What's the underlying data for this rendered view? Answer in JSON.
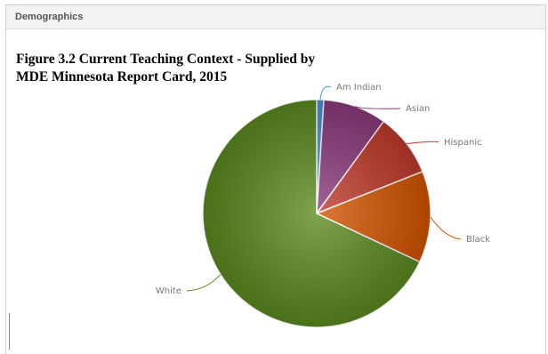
{
  "panel": {
    "title": "Demographics"
  },
  "figure": {
    "caption_line1": "Figure 3.2  Current Teaching Context - Supplied by",
    "caption_line2": "MDE Minnesota Report Card, 2015"
  },
  "chart_data": {
    "type": "pie",
    "title": "",
    "slices": [
      {
        "label": "Am Indian",
        "value": 1,
        "color": "#4a90d9"
      },
      {
        "label": "Asian",
        "value": 9,
        "color": "#8b3a7a"
      },
      {
        "label": "Hispanic",
        "value": 9,
        "color": "#c0392b"
      },
      {
        "label": "Black",
        "value": 13,
        "color": "#d35400"
      },
      {
        "label": "White",
        "value": 68,
        "color": "#5a8a1e"
      }
    ]
  }
}
